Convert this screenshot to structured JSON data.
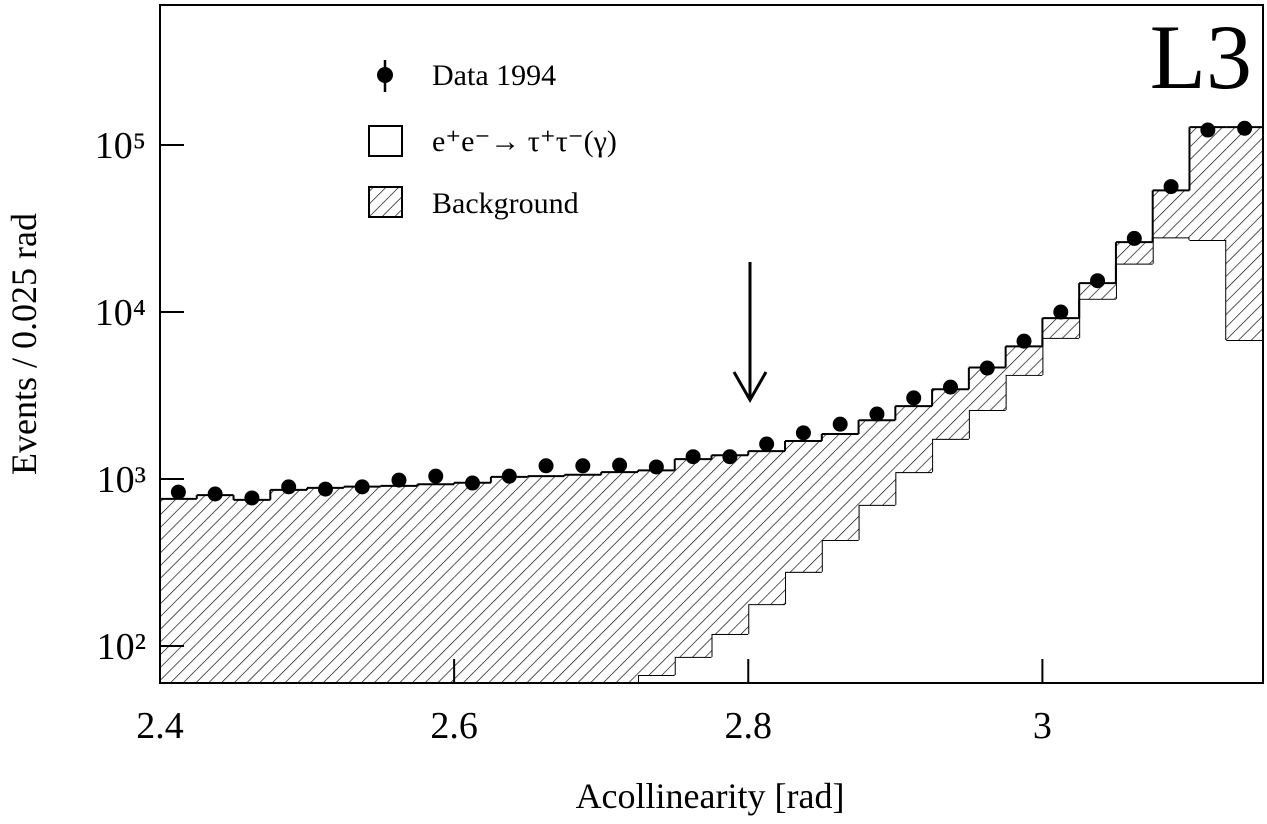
{
  "chart_data": {
    "type": "stacked-histogram",
    "annotation": "L3",
    "xlabel": "Acollinearity   [rad]",
    "ylabel": "Events / 0.025 rad",
    "bins": [
      2.4,
      2.425,
      2.45,
      2.475,
      2.5,
      2.525,
      2.55,
      2.575,
      2.6,
      2.625,
      2.65,
      2.675,
      2.7,
      2.725,
      2.75,
      2.775,
      2.8,
      2.825,
      2.85,
      2.875,
      2.9,
      2.925,
      2.95,
      2.975,
      3.0,
      3.025,
      3.05,
      3.075,
      3.1,
      3.125,
      3.15
    ],
    "log_y": true,
    "xlim": [
      2.4,
      3.15
    ],
    "ylim": [
      60,
      690000
    ],
    "xticks": [
      2.4,
      2.6,
      2.8,
      3
    ],
    "yticks": [
      {
        "value": 100,
        "label": "10²"
      },
      {
        "value": 1000,
        "label": "10³"
      },
      {
        "value": 10000,
        "label": "10⁴"
      },
      {
        "value": 100000,
        "label": "10⁵"
      }
    ],
    "series": [
      {
        "name": "e⁺e⁻→ τ⁺τ⁻(γ)",
        "color": "#ffffff",
        "values": [
          null,
          null,
          null,
          null,
          null,
          null,
          null,
          null,
          null,
          null,
          null,
          null,
          null,
          67,
          86,
          118,
          178,
          278,
          431,
          700,
          1100,
          1740,
          2590,
          4200,
          7000,
          12000,
          19500,
          28000,
          27000,
          6800
        ]
      },
      {
        "name": "Background",
        "color": "hatched",
        "values": [
          760,
          800,
          750,
          860,
          885,
          900,
          910,
          930,
          950,
          1030,
          1040,
          1060,
          1100,
          1060,
          1230,
          1270,
          1290,
          1410,
          1430,
          1550,
          1630,
          1710,
          2060,
          2030,
          2200,
          2900,
          6700,
          25500,
          101000,
          121200
        ]
      }
    ],
    "points": {
      "name": "Data 1994",
      "color": "#000000",
      "x": [
        2.4125,
        2.4375,
        2.4625,
        2.4875,
        2.5125,
        2.5375,
        2.5625,
        2.5875,
        2.6125,
        2.6375,
        2.6625,
        2.6875,
        2.7125,
        2.7375,
        2.7625,
        2.7875,
        2.8125,
        2.8375,
        2.8625,
        2.8875,
        2.9125,
        2.9375,
        2.9625,
        2.9875,
        3.0125,
        3.0375,
        3.0625,
        3.0875,
        3.1125,
        3.1375
      ],
      "values": [
        835,
        813,
        770,
        897,
        870,
        897,
        985,
        1040,
        946,
        1040,
        1200,
        1200,
        1210,
        1180,
        1360,
        1360,
        1620,
        1890,
        2130,
        2450,
        3060,
        3550,
        4620,
        6690,
        10000,
        15400,
        27600,
        56400,
        123000,
        126000
      ]
    }
  }
}
